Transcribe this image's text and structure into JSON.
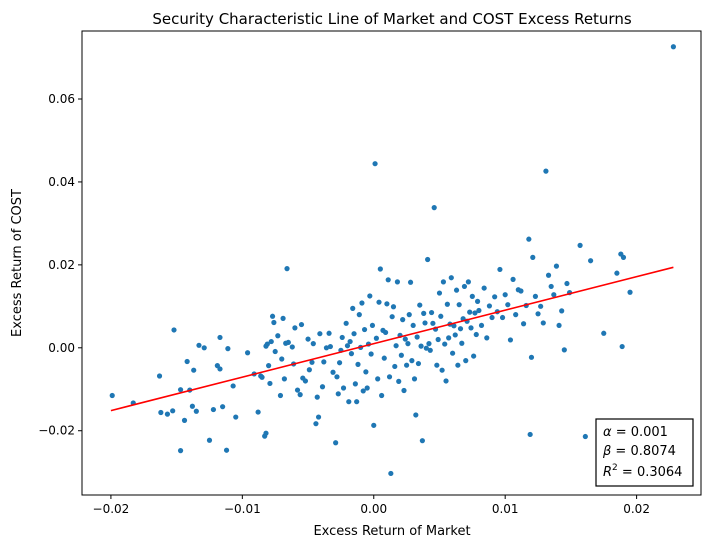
{
  "chart_data": {
    "type": "scatter",
    "title": "Security Characteristic Line of Market and COST Excess Returns",
    "xlabel": "Excess Return of Market",
    "ylabel": "Excess Return of COST",
    "xlim": [
      -0.0222,
      0.0249
    ],
    "ylim": [
      -0.0355,
      0.0764
    ],
    "x_ticks": [
      -0.02,
      -0.01,
      0.0,
      0.01,
      0.02
    ],
    "x_tick_labels": [
      "−0.02",
      "−0.01",
      "0.00",
      "0.01",
      "0.02"
    ],
    "y_ticks": [
      -0.02,
      0.0,
      0.02,
      0.04,
      0.06
    ],
    "y_tick_labels": [
      "−0.02",
      "0.00",
      "0.02",
      "0.04",
      "0.06"
    ],
    "grid": false,
    "colors": {
      "points": "#1f77b4",
      "line": "#ff0000"
    },
    "regression": {
      "alpha": 0.001,
      "beta": 0.8074,
      "r2": 0.3064,
      "x_range": [
        -0.02,
        0.0228
      ]
    },
    "stats_box": {
      "alpha_symbol": "α",
      "alpha_text": " = 0.001",
      "beta_symbol": "β",
      "beta_text": " = 0.8074",
      "r_symbol": "R",
      "r_sup": "2",
      "r2_text": " = 0.3064"
    },
    "points": [
      [
        -0.0199,
        -0.0115
      ],
      [
        -0.0183,
        -0.0133
      ],
      [
        -0.0163,
        -0.0068
      ],
      [
        -0.0162,
        -0.0156
      ],
      [
        -0.0157,
        -0.016
      ],
      [
        -0.0153,
        -0.0152
      ],
      [
        -0.0152,
        0.0043
      ],
      [
        -0.0147,
        -0.0248
      ],
      [
        -0.0147,
        -0.0101
      ],
      [
        -0.0144,
        -0.0175
      ],
      [
        -0.0142,
        -0.0033
      ],
      [
        -0.014,
        -0.0102
      ],
      [
        -0.0138,
        -0.0141
      ],
      [
        -0.0137,
        -0.0054
      ],
      [
        -0.0135,
        -0.0153
      ],
      [
        -0.0133,
        0.0006
      ],
      [
        -0.0129,
        0.0
      ],
      [
        -0.0125,
        -0.0223
      ],
      [
        -0.0122,
        -0.0149
      ],
      [
        -0.0119,
        -0.0043
      ],
      [
        -0.0117,
        -0.0051
      ],
      [
        -0.0117,
        0.0025
      ],
      [
        -0.0115,
        -0.0142
      ],
      [
        -0.0112,
        -0.0247
      ],
      [
        -0.0111,
        -0.0002
      ],
      [
        -0.0107,
        -0.0092
      ],
      [
        -0.0105,
        -0.0167
      ],
      [
        -0.0096,
        -0.0012
      ],
      [
        -0.0091,
        -0.0063
      ],
      [
        -0.0088,
        -0.0155
      ],
      [
        -0.0086,
        -0.0068
      ],
      [
        -0.0085,
        -0.0071
      ],
      [
        -0.0083,
        -0.0213
      ],
      [
        -0.0082,
        -0.0206
      ],
      [
        -0.0082,
        0.0004
      ],
      [
        -0.0081,
        0.0009
      ],
      [
        -0.008,
        -0.0043
      ],
      [
        -0.0079,
        -0.0086
      ],
      [
        -0.0078,
        0.0015
      ],
      [
        -0.0077,
        0.0076
      ],
      [
        -0.0076,
        0.0061
      ],
      [
        -0.0075,
        -0.0009
      ],
      [
        -0.0073,
        0.0029
      ],
      [
        -0.0071,
        -0.0115
      ],
      [
        -0.007,
        -0.0027
      ],
      [
        -0.0069,
        0.0071
      ],
      [
        -0.0068,
        -0.0075
      ],
      [
        -0.0067,
        0.0011
      ],
      [
        -0.0066,
        0.0191
      ],
      [
        -0.0065,
        0.0013
      ],
      [
        -0.0062,
        0.0002
      ],
      [
        -0.0061,
        -0.0039
      ],
      [
        -0.006,
        0.0048
      ],
      [
        -0.0058,
        -0.0102
      ],
      [
        -0.0056,
        -0.0113
      ],
      [
        -0.0055,
        0.0056
      ],
      [
        -0.0054,
        -0.0073
      ],
      [
        -0.0052,
        -0.008
      ],
      [
        -0.005,
        0.0021
      ],
      [
        -0.0049,
        -0.0053
      ],
      [
        -0.0047,
        -0.0035
      ],
      [
        -0.0046,
        0.001
      ],
      [
        -0.0044,
        -0.0183
      ],
      [
        -0.0043,
        -0.0119
      ],
      [
        -0.0042,
        -0.0167
      ],
      [
        -0.0041,
        0.0034
      ],
      [
        -0.0039,
        -0.0094
      ],
      [
        -0.0038,
        -0.0034
      ],
      [
        -0.0036,
        0.0
      ],
      [
        -0.0034,
        0.0035
      ],
      [
        -0.0033,
        0.0003
      ],
      [
        -0.0031,
        -0.0059
      ],
      [
        -0.0029,
        -0.0229
      ],
      [
        -0.0028,
        -0.007
      ],
      [
        -0.0027,
        -0.0111
      ],
      [
        -0.0026,
        -0.0036
      ],
      [
        -0.0025,
        -0.0006
      ],
      [
        -0.0024,
        0.0025
      ],
      [
        -0.0023,
        -0.0097
      ],
      [
        -0.0021,
        0.0059
      ],
      [
        -0.002,
        0.0005
      ],
      [
        -0.0019,
        -0.013
      ],
      [
        -0.0018,
        0.0015
      ],
      [
        -0.0017,
        -0.0014
      ],
      [
        -0.0016,
        0.0095
      ],
      [
        -0.0015,
        0.0034
      ],
      [
        -0.0014,
        -0.0087
      ],
      [
        -0.0013,
        -0.013
      ],
      [
        -0.0012,
        -0.004
      ],
      [
        -0.0011,
        0.008
      ],
      [
        -0.001,
        0.0001
      ],
      [
        -0.0009,
        0.0108
      ],
      [
        -0.0008,
        -0.0104
      ],
      [
        -0.0007,
        0.0044
      ],
      [
        -0.0006,
        -0.0058
      ],
      [
        -0.0005,
        -0.0097
      ],
      [
        -0.0004,
        0.0009
      ],
      [
        -0.0003,
        0.0125
      ],
      [
        -0.0002,
        -0.0015
      ],
      [
        -0.0001,
        0.0054
      ],
      [
        0.0,
        -0.0187
      ],
      [
        0.0001,
        0.0444
      ],
      [
        0.0002,
        0.0023
      ],
      [
        0.0003,
        -0.0075
      ],
      [
        0.0004,
        0.011
      ],
      [
        0.0005,
        0.019
      ],
      [
        0.0006,
        -0.0115
      ],
      [
        0.0007,
        0.0042
      ],
      [
        0.0008,
        -0.0025
      ],
      [
        0.0009,
        0.0037
      ],
      [
        0.001,
        0.0106
      ],
      [
        0.0011,
        0.0164
      ],
      [
        0.0012,
        -0.007
      ],
      [
        0.0013,
        -0.0303
      ],
      [
        0.0014,
        0.0075
      ],
      [
        0.0015,
        0.0099
      ],
      [
        0.0016,
        -0.0045
      ],
      [
        0.0017,
        0.0005
      ],
      [
        0.0018,
        0.0159
      ],
      [
        0.0019,
        -0.0081
      ],
      [
        0.002,
        0.003
      ],
      [
        0.0021,
        -0.0018
      ],
      [
        0.0022,
        0.0068
      ],
      [
        0.0023,
        -0.0103
      ],
      [
        0.0024,
        0.0021
      ],
      [
        0.0025,
        -0.0042
      ],
      [
        0.0026,
        0.001
      ],
      [
        0.0027,
        0.008
      ],
      [
        0.0028,
        0.0158
      ],
      [
        0.0029,
        -0.0031
      ],
      [
        0.003,
        0.0054
      ],
      [
        0.0031,
        -0.0075
      ],
      [
        0.0032,
        -0.0162
      ],
      [
        0.0033,
        0.0026
      ],
      [
        0.0034,
        -0.0038
      ],
      [
        0.0035,
        0.0103
      ],
      [
        0.0036,
        0.0004
      ],
      [
        0.0037,
        -0.0224
      ],
      [
        0.0038,
        0.0083
      ],
      [
        0.0039,
        0.006
      ],
      [
        0.004,
        -0.0001
      ],
      [
        0.0041,
        0.0213
      ],
      [
        0.0042,
        0.001
      ],
      [
        0.0043,
        -0.0006
      ],
      [
        0.0044,
        0.0085
      ],
      [
        0.0045,
        0.0059
      ],
      [
        0.0046,
        0.0338
      ],
      [
        0.0047,
        0.0045
      ],
      [
        0.0048,
        -0.0042
      ],
      [
        0.0049,
        0.002
      ],
      [
        0.005,
        0.0132
      ],
      [
        0.0051,
        0.0076
      ],
      [
        0.0052,
        -0.0054
      ],
      [
        0.0053,
        0.0159
      ],
      [
        0.0054,
        0.0009
      ],
      [
        0.0055,
        -0.008
      ],
      [
        0.0056,
        0.0105
      ],
      [
        0.0057,
        0.0024
      ],
      [
        0.0058,
        0.0057
      ],
      [
        0.0059,
        0.0169
      ],
      [
        0.006,
        -0.0013
      ],
      [
        0.0061,
        0.0053
      ],
      [
        0.0062,
        0.0031
      ],
      [
        0.0063,
        0.0139
      ],
      [
        0.0064,
        -0.0042
      ],
      [
        0.0065,
        0.0104
      ],
      [
        0.0066,
        0.0046
      ],
      [
        0.0067,
        0.0011
      ],
      [
        0.0068,
        0.007
      ],
      [
        0.0069,
        0.0148
      ],
      [
        0.007,
        -0.0031
      ],
      [
        0.0071,
        0.0064
      ],
      [
        0.0072,
        0.0159
      ],
      [
        0.0073,
        0.0086
      ],
      [
        0.0074,
        0.0048
      ],
      [
        0.0075,
        0.0124
      ],
      [
        0.0076,
        -0.002
      ],
      [
        0.0077,
        0.0084
      ],
      [
        0.0078,
        0.0032
      ],
      [
        0.0079,
        0.0112
      ],
      [
        0.008,
        0.009
      ],
      [
        0.0082,
        0.0054
      ],
      [
        0.0084,
        0.0144
      ],
      [
        0.0086,
        0.0024
      ],
      [
        0.0088,
        0.0101
      ],
      [
        0.009,
        0.0073
      ],
      [
        0.0092,
        0.0123
      ],
      [
        0.0094,
        0.0087
      ],
      [
        0.0096,
        0.0189
      ],
      [
        0.0098,
        0.0073
      ],
      [
        0.01,
        0.0128
      ],
      [
        0.0102,
        0.0104
      ],
      [
        0.0104,
        0.0019
      ],
      [
        0.0106,
        0.0165
      ],
      [
        0.0108,
        0.008
      ],
      [
        0.011,
        0.014
      ],
      [
        0.0112,
        0.0137
      ],
      [
        0.0114,
        0.0058
      ],
      [
        0.0116,
        0.0102
      ],
      [
        0.0118,
        0.0262
      ],
      [
        0.0119,
        -0.0209
      ],
      [
        0.012,
        -0.0023
      ],
      [
        0.0121,
        0.0218
      ],
      [
        0.0123,
        0.0124
      ],
      [
        0.0125,
        0.0082
      ],
      [
        0.0127,
        0.01
      ],
      [
        0.0129,
        0.006
      ],
      [
        0.0131,
        0.0426
      ],
      [
        0.0133,
        0.0175
      ],
      [
        0.0135,
        0.0148
      ],
      [
        0.0137,
        0.0128
      ],
      [
        0.0139,
        0.0197
      ],
      [
        0.0141,
        0.0054
      ],
      [
        0.0143,
        0.0089
      ],
      [
        0.0145,
        -0.0005
      ],
      [
        0.0147,
        0.0155
      ],
      [
        0.0149,
        0.0133
      ],
      [
        0.0157,
        0.0247
      ],
      [
        0.0161,
        -0.0214
      ],
      [
        0.0165,
        0.021
      ],
      [
        0.0175,
        0.0035
      ],
      [
        0.0185,
        0.018
      ],
      [
        0.0188,
        0.0226
      ],
      [
        0.019,
        0.0218
      ],
      [
        0.0189,
        0.0003
      ],
      [
        0.0195,
        0.0134
      ],
      [
        0.0228,
        0.0726
      ]
    ]
  }
}
